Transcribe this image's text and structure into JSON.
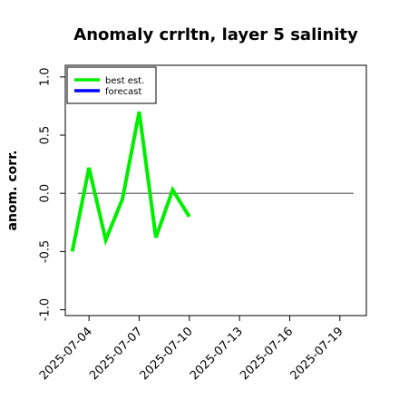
{
  "chart_data": {
    "type": "line",
    "title": "Anomaly crrltn, layer 5 salinity",
    "ylabel": "anom. corr.",
    "xlabel": "",
    "ylim": [
      -1.05,
      1.1
    ],
    "yticks": [
      -1.0,
      -0.5,
      0.0,
      0.5,
      1.0
    ],
    "ytick_labels": [
      "-1.0",
      "-0.5",
      "0.0",
      "0.5",
      "1.0"
    ],
    "xlim": [
      "2025-07-02T14:00",
      "2025-07-20T14:00"
    ],
    "xticks": [
      "2025-07-04",
      "2025-07-07",
      "2025-07-10",
      "2025-07-13",
      "2025-07-16",
      "2025-07-19"
    ],
    "xtick_labels": [
      "2025-07-04",
      "2025-07-07",
      "2025-07-10",
      "2025-07-13",
      "2025-07-16",
      "2025-07-19"
    ],
    "xtick_colors": [
      "#000000",
      "#000000",
      "#228b22",
      "#000000",
      "#000000",
      "#000000"
    ],
    "reference_line": {
      "y": 0.0,
      "color": "#555555"
    },
    "legend_position": "top-left",
    "series": [
      {
        "name": "best est.",
        "color": "#00ee00",
        "x": [
          "2025-07-03",
          "2025-07-04",
          "2025-07-05",
          "2025-07-06",
          "2025-07-07",
          "2025-07-08",
          "2025-07-09",
          "2025-07-10"
        ],
        "values": [
          -0.5,
          0.22,
          -0.4,
          -0.05,
          0.7,
          -0.38,
          0.03,
          -0.2
        ]
      },
      {
        "name": "forecast",
        "color": "#0000ff",
        "x": [],
        "values": []
      }
    ]
  }
}
